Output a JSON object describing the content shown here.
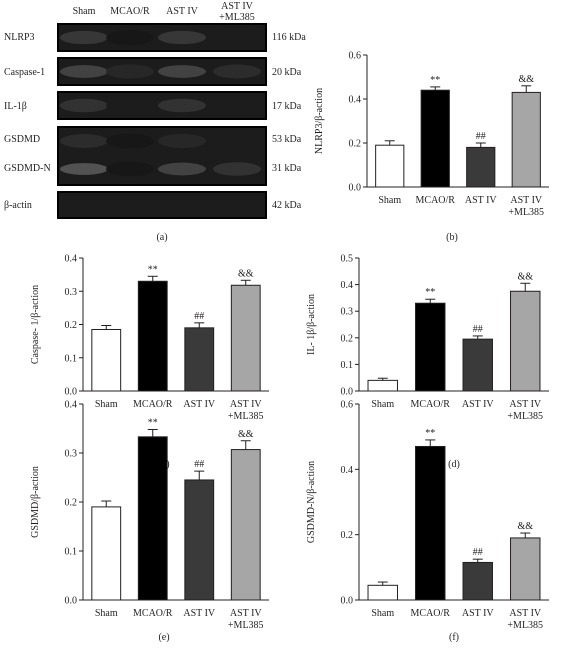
{
  "blot": {
    "label": "(a)",
    "columns": [
      "Sham",
      "MCAO/R",
      "AST IV",
      "AST IV\n+ML385"
    ],
    "rows": [
      {
        "name": "NLRP3",
        "mw": "116 kDa"
      },
      {
        "name": "Caspase-1",
        "mw": "20 kDa"
      },
      {
        "name": "IL-1β",
        "mw": "17 kDa"
      },
      {
        "name": "GSDMD",
        "mw": "53 kDa"
      },
      {
        "name": "GSDMD-N",
        "mw": "31 kDa"
      },
      {
        "name": "β-actin",
        "mw": "42 kDa"
      }
    ]
  },
  "colors": {
    "Sham": "#ffffff",
    "MCAO/R": "#000000",
    "AST IV": "#3a3a3a",
    "AST IV +ML385": "#a6a6a6",
    "axis": "#231f20"
  },
  "chart_data": [
    {
      "panel": "(b)",
      "type": "bar",
      "categories": [
        "Sham",
        "MCAO/R",
        "AST IV",
        "AST IV\n+ML385"
      ],
      "values": [
        0.19,
        0.44,
        0.18,
        0.43
      ],
      "errors": [
        0.02,
        0.015,
        0.02,
        0.03
      ],
      "annotations": [
        "",
        "**",
        "##",
        "&&"
      ],
      "ylabel": "NLRP3/β-action",
      "ylim": [
        0,
        0.6
      ],
      "yticks": [
        "0.0",
        "0.2",
        "0.4",
        "0.6"
      ]
    },
    {
      "panel": "(c)",
      "type": "bar",
      "categories": [
        "Sham",
        "MCAO/R",
        "AST IV",
        "AST IV\n+ML385"
      ],
      "values": [
        0.185,
        0.33,
        0.19,
        0.318
      ],
      "errors": [
        0.012,
        0.015,
        0.015,
        0.015
      ],
      "annotations": [
        "",
        "**",
        "##",
        "&&"
      ],
      "ylabel": "Caspase- 1/β-action",
      "ylim": [
        0,
        0.4
      ],
      "yticks": [
        "0.0",
        "0.1",
        "0.2",
        "0.3",
        "0.4"
      ]
    },
    {
      "panel": "(d)",
      "type": "bar",
      "categories": [
        "Sham",
        "MCAO/R",
        "AST IV",
        "AST IV\n+ML385"
      ],
      "values": [
        0.04,
        0.33,
        0.195,
        0.375
      ],
      "errors": [
        0.008,
        0.015,
        0.012,
        0.03
      ],
      "annotations": [
        "",
        "**",
        "##",
        "&&"
      ],
      "ylabel": "IL- 1β/β-action",
      "ylim": [
        0,
        0.5
      ],
      "yticks": [
        "0.0",
        "0.1",
        "0.2",
        "0.3",
        "0.4",
        "0.5"
      ]
    },
    {
      "panel": "(e)",
      "type": "bar",
      "categories": [
        "Sham",
        "MCAO/R",
        "AST IV",
        "AST IV\n+ML385"
      ],
      "values": [
        0.19,
        0.333,
        0.245,
        0.307
      ],
      "errors": [
        0.012,
        0.015,
        0.018,
        0.018
      ],
      "annotations": [
        "",
        "**",
        "##",
        "&&"
      ],
      "ylabel": "GSDMD/β-action",
      "ylim": [
        0,
        0.4
      ],
      "yticks": [
        "0.0",
        "0.1",
        "0.2",
        "0.3",
        "0.4"
      ]
    },
    {
      "panel": "(f)",
      "type": "bar",
      "categories": [
        "Sham",
        "MCAO/R",
        "AST IV",
        "AST IV\n+ML385"
      ],
      "values": [
        0.045,
        0.47,
        0.115,
        0.19
      ],
      "errors": [
        0.01,
        0.02,
        0.01,
        0.015
      ],
      "annotations": [
        "",
        "**",
        "##",
        "&&"
      ],
      "ylabel": "GSDMD-N/β-action",
      "ylim": [
        0,
        0.6
      ],
      "yticks": [
        "0.0",
        "0.2",
        "0.4",
        "0.6"
      ]
    }
  ]
}
